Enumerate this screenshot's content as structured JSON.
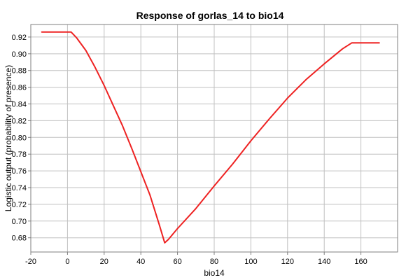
{
  "chart_data": {
    "type": "line",
    "title": "Response of gorlas_14 to bio14",
    "xlabel": "bio14",
    "ylabel": "Logistic output (probability of presence)",
    "xlim": [
      -20,
      180
    ],
    "ylim": [
      0.663,
      0.935
    ],
    "xticks": [
      -20,
      0,
      20,
      40,
      60,
      80,
      100,
      120,
      140,
      160
    ],
    "yticks": [
      0.68,
      0.7,
      0.72,
      0.74,
      0.76,
      0.78,
      0.8,
      0.82,
      0.84,
      0.86,
      0.88,
      0.9,
      0.92
    ],
    "grid": true,
    "series": [
      {
        "color": "#ee2222",
        "x": [
          -14,
          2,
          5,
          10,
          15,
          20,
          25,
          30,
          35,
          40,
          45,
          50,
          53,
          55,
          60,
          70,
          80,
          90,
          100,
          110,
          120,
          130,
          140,
          150,
          155,
          170
        ],
        "y": [
          0.926,
          0.926,
          0.919,
          0.904,
          0.884,
          0.862,
          0.838,
          0.814,
          0.787,
          0.759,
          0.731,
          0.696,
          0.674,
          0.678,
          0.691,
          0.715,
          0.742,
          0.768,
          0.796,
          0.822,
          0.847,
          0.869,
          0.888,
          0.906,
          0.913,
          0.913
        ]
      }
    ]
  }
}
